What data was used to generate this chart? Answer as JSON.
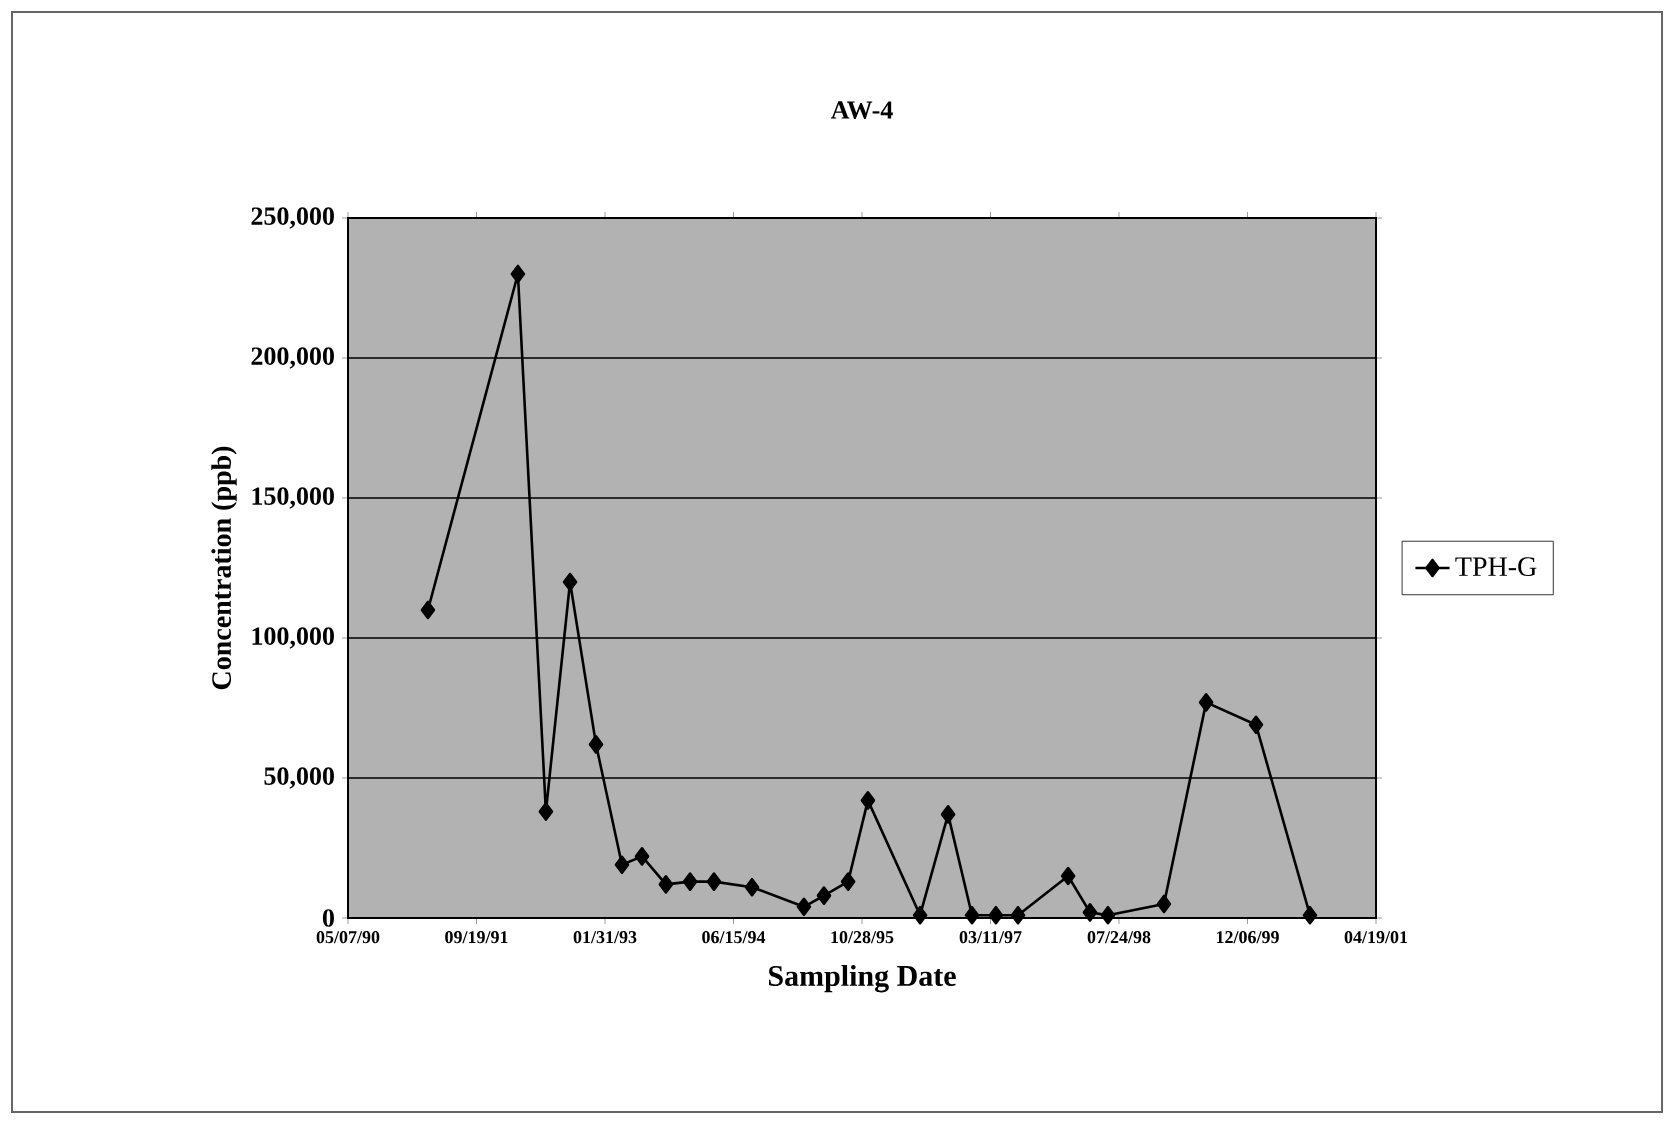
{
  "chart_data": {
    "type": "line",
    "title": "AW-4",
    "xlabel": "Sampling Date",
    "ylabel": "Concentration (ppb)",
    "x": [
      "1991-03-14",
      "1992-02-27",
      "1992-06-15",
      "1992-09-17",
      "1992-12-27",
      "1993-04-07",
      "1993-06-24",
      "1993-09-25",
      "1993-12-28",
      "1994-03-31",
      "1994-08-26",
      "1995-03-16",
      "1995-06-02",
      "1995-09-04",
      "1995-11-20",
      "1996-06-10",
      "1996-09-27",
      "1996-12-29",
      "1997-04-01",
      "1997-06-26",
      "1998-01-07",
      "1998-04-02",
      "1998-06-11",
      "1999-01-15",
      "1999-06-28",
      "2000-01-08",
      "2000-08-05"
    ],
    "series": [
      {
        "name": "TPH-G",
        "color": "#000000",
        "values": [
          110000,
          230000,
          38000,
          120000,
          62000,
          19000,
          22000,
          12000,
          13000,
          13000,
          11000,
          4000,
          8000,
          13000,
          42000,
          1000,
          37000,
          1000,
          1000,
          1000,
          15000,
          2000,
          1000,
          5000,
          77000,
          69000,
          1000
        ]
      }
    ],
    "xlim": [
      "1990-05-07",
      "2001-04-19"
    ],
    "xticks": [
      {
        "value": "1990-05-07",
        "label": "05/07/90"
      },
      {
        "value": "1991-09-19",
        "label": "09/19/91"
      },
      {
        "value": "1993-01-31",
        "label": "01/31/93"
      },
      {
        "value": "1994-06-15",
        "label": "06/15/94"
      },
      {
        "value": "1995-10-28",
        "label": "10/28/95"
      },
      {
        "value": "1997-03-11",
        "label": "03/11/97"
      },
      {
        "value": "1998-07-24",
        "label": "07/24/98"
      },
      {
        "value": "1999-12-06",
        "label": "12/06/99"
      },
      {
        "value": "2001-04-19",
        "label": "04/19/01"
      }
    ],
    "ylim": [
      0,
      250000
    ],
    "yticks": [
      0,
      {
        "value": 50000,
        "label": "50,000"
      },
      {
        "value": 100000,
        "label": "100,000"
      },
      {
        "value": 150000,
        "label": "150,000"
      },
      {
        "value": 200000,
        "label": "200,000"
      },
      {
        "value": 250000,
        "label": "250,000"
      }
    ],
    "grid": "y",
    "legend": "right",
    "marker": "diamond",
    "line_style": "solid"
  }
}
